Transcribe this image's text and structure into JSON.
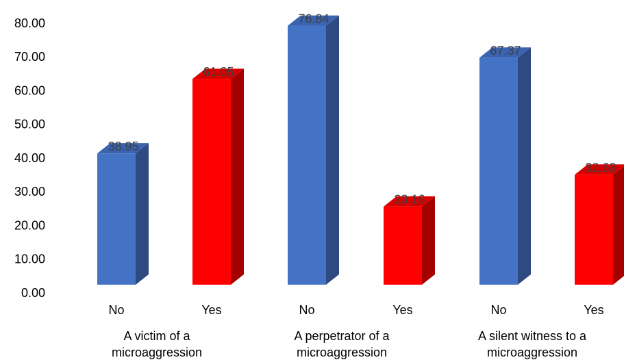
{
  "chart_data": {
    "type": "bar",
    "style": "3d-column",
    "ylim": [
      0,
      80
    ],
    "ytick_step": 10,
    "ytick_decimals": 2,
    "grid": false,
    "legend": "none",
    "groups": [
      {
        "label_lines": [
          "A victim of a",
          "microaggression"
        ]
      },
      {
        "label_lines": [
          "A perpetrator of a",
          "microaggression"
        ]
      },
      {
        "label_lines": [
          "A silent witness to a",
          "microaggression"
        ]
      }
    ],
    "categories": [
      "No",
      "Yes",
      "No",
      "Yes",
      "No",
      "Yes"
    ],
    "values": [
      38.95,
      61.05,
      76.84,
      23.16,
      67.37,
      32.63
    ],
    "data_labels": [
      "38.95",
      "61.05",
      "76.84",
      "23.16",
      "67.37",
      "32.63"
    ],
    "colors": {
      "No": {
        "front": "#4472C4",
        "side": "#2F4A80",
        "top": "#3A63B0"
      },
      "Yes": {
        "front": "#FF0000",
        "side": "#A50000",
        "top": "#D80000"
      }
    }
  }
}
